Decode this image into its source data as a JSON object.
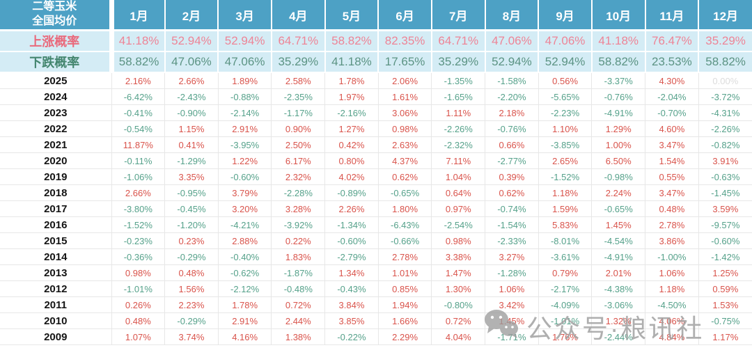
{
  "chart_data": {
    "type": "table",
    "title": "二等玉米全国均价",
    "title_lines": [
      "二等玉米",
      "全国均价"
    ],
    "columns": [
      "1月",
      "2月",
      "3月",
      "4月",
      "5月",
      "6月",
      "7月",
      "8月",
      "9月",
      "10月",
      "11月",
      "12月"
    ],
    "value_format": "percent",
    "probability_rows": [
      {
        "label": "上涨概率",
        "kind": "rise",
        "values": [
          41.18,
          52.94,
          52.94,
          64.71,
          58.82,
          82.35,
          64.71,
          47.06,
          47.06,
          41.18,
          76.47,
          35.29
        ]
      },
      {
        "label": "下跌概率",
        "kind": "fall",
        "values": [
          58.82,
          47.06,
          47.06,
          35.29,
          41.18,
          17.65,
          35.29,
          52.94,
          52.94,
          58.82,
          23.53,
          58.82
        ]
      }
    ],
    "year_rows": [
      {
        "year": "2025",
        "values": [
          2.16,
          2.66,
          1.89,
          2.58,
          1.78,
          2.06,
          -1.35,
          -1.58,
          0.56,
          -3.37,
          4.3,
          0.0
        ]
      },
      {
        "year": "2024",
        "values": [
          -6.42,
          -2.43,
          -0.88,
          -2.35,
          1.97,
          1.61,
          -1.65,
          -2.2,
          -5.65,
          -0.76,
          -2.04,
          -3.72
        ]
      },
      {
        "year": "2023",
        "values": [
          -0.41,
          -0.9,
          -2.14,
          -1.17,
          -2.16,
          3.06,
          1.11,
          2.18,
          -2.23,
          -4.91,
          -0.7,
          -4.31
        ]
      },
      {
        "year": "2022",
        "values": [
          -0.54,
          1.15,
          2.91,
          0.9,
          1.27,
          0.98,
          -2.26,
          -0.76,
          1.1,
          1.29,
          4.6,
          -2.26
        ]
      },
      {
        "year": "2021",
        "values": [
          11.87,
          0.41,
          -3.95,
          2.5,
          0.42,
          2.63,
          -2.32,
          0.66,
          -3.85,
          1.0,
          3.47,
          -0.82
        ]
      },
      {
        "year": "2020",
        "values": [
          -0.11,
          -1.29,
          1.22,
          6.17,
          0.8,
          4.37,
          7.11,
          -2.77,
          2.65,
          6.5,
          1.54,
          3.91
        ]
      },
      {
        "year": "2019",
        "values": [
          -1.06,
          3.35,
          -0.6,
          2.32,
          4.02,
          0.62,
          1.04,
          0.39,
          -1.52,
          -0.98,
          0.55,
          -0.63
        ]
      },
      {
        "year": "2018",
        "values": [
          2.66,
          -0.95,
          3.79,
          -2.28,
          -0.89,
          -0.65,
          0.64,
          0.62,
          1.18,
          2.24,
          3.47,
          -1.45
        ]
      },
      {
        "year": "2017",
        "values": [
          -3.8,
          -0.45,
          3.2,
          3.28,
          2.26,
          1.8,
          0.97,
          -0.74,
          1.59,
          -0.65,
          0.48,
          3.59
        ]
      },
      {
        "year": "2016",
        "values": [
          -1.52,
          -1.2,
          -4.21,
          -3.92,
          -1.34,
          -6.43,
          -2.54,
          -1.54,
          5.83,
          1.45,
          2.78,
          -9.57
        ]
      },
      {
        "year": "2015",
        "values": [
          -0.23,
          0.23,
          2.88,
          0.22,
          -0.6,
          -0.66,
          0.98,
          -2.33,
          -8.01,
          -4.54,
          3.86,
          -0.6
        ]
      },
      {
        "year": "2014",
        "values": [
          -0.36,
          -0.29,
          -0.4,
          1.83,
          -2.79,
          2.78,
          3.38,
          3.27,
          -3.61,
          -4.91,
          -1.0,
          -1.42
        ]
      },
      {
        "year": "2013",
        "values": [
          0.98,
          0.48,
          -0.62,
          -1.87,
          1.34,
          1.01,
          1.47,
          -1.28,
          0.79,
          2.01,
          1.06,
          1.25
        ]
      },
      {
        "year": "2012",
        "values": [
          -1.01,
          1.56,
          -2.12,
          -0.48,
          -0.43,
          0.85,
          1.3,
          1.06,
          -2.17,
          -4.38,
          1.18,
          0.59
        ]
      },
      {
        "year": "2011",
        "values": [
          0.26,
          2.23,
          1.78,
          0.72,
          3.84,
          1.94,
          -0.8,
          3.42,
          -4.09,
          -3.06,
          -4.5,
          1.53
        ]
      },
      {
        "year": "2010",
        "values": [
          0.48,
          -0.29,
          2.91,
          2.44,
          3.85,
          1.66,
          0.72,
          1.45,
          -1.01,
          1.32,
          4.06,
          -0.75
        ]
      },
      {
        "year": "2009",
        "values": [
          1.07,
          3.74,
          4.16,
          1.38,
          -0.22,
          2.29,
          4.04,
          -1.71,
          1.76,
          -2.44,
          4.84,
          1.17
        ]
      }
    ]
  },
  "watermark": {
    "text": "公众号·粮讯社",
    "icon": "wechat-icon"
  },
  "colors": {
    "header_bg": "#4da1c5",
    "prob_bg": "#d4ecf5",
    "rise_label": "#e96a7c",
    "rise_value": "#ee8496",
    "fall_label": "#44866f",
    "fall_value": "#5b9383",
    "positive": "#d9534b",
    "negative": "#55a18a",
    "zero": "#dcdcdc",
    "watermark": "#a2a2a2"
  }
}
